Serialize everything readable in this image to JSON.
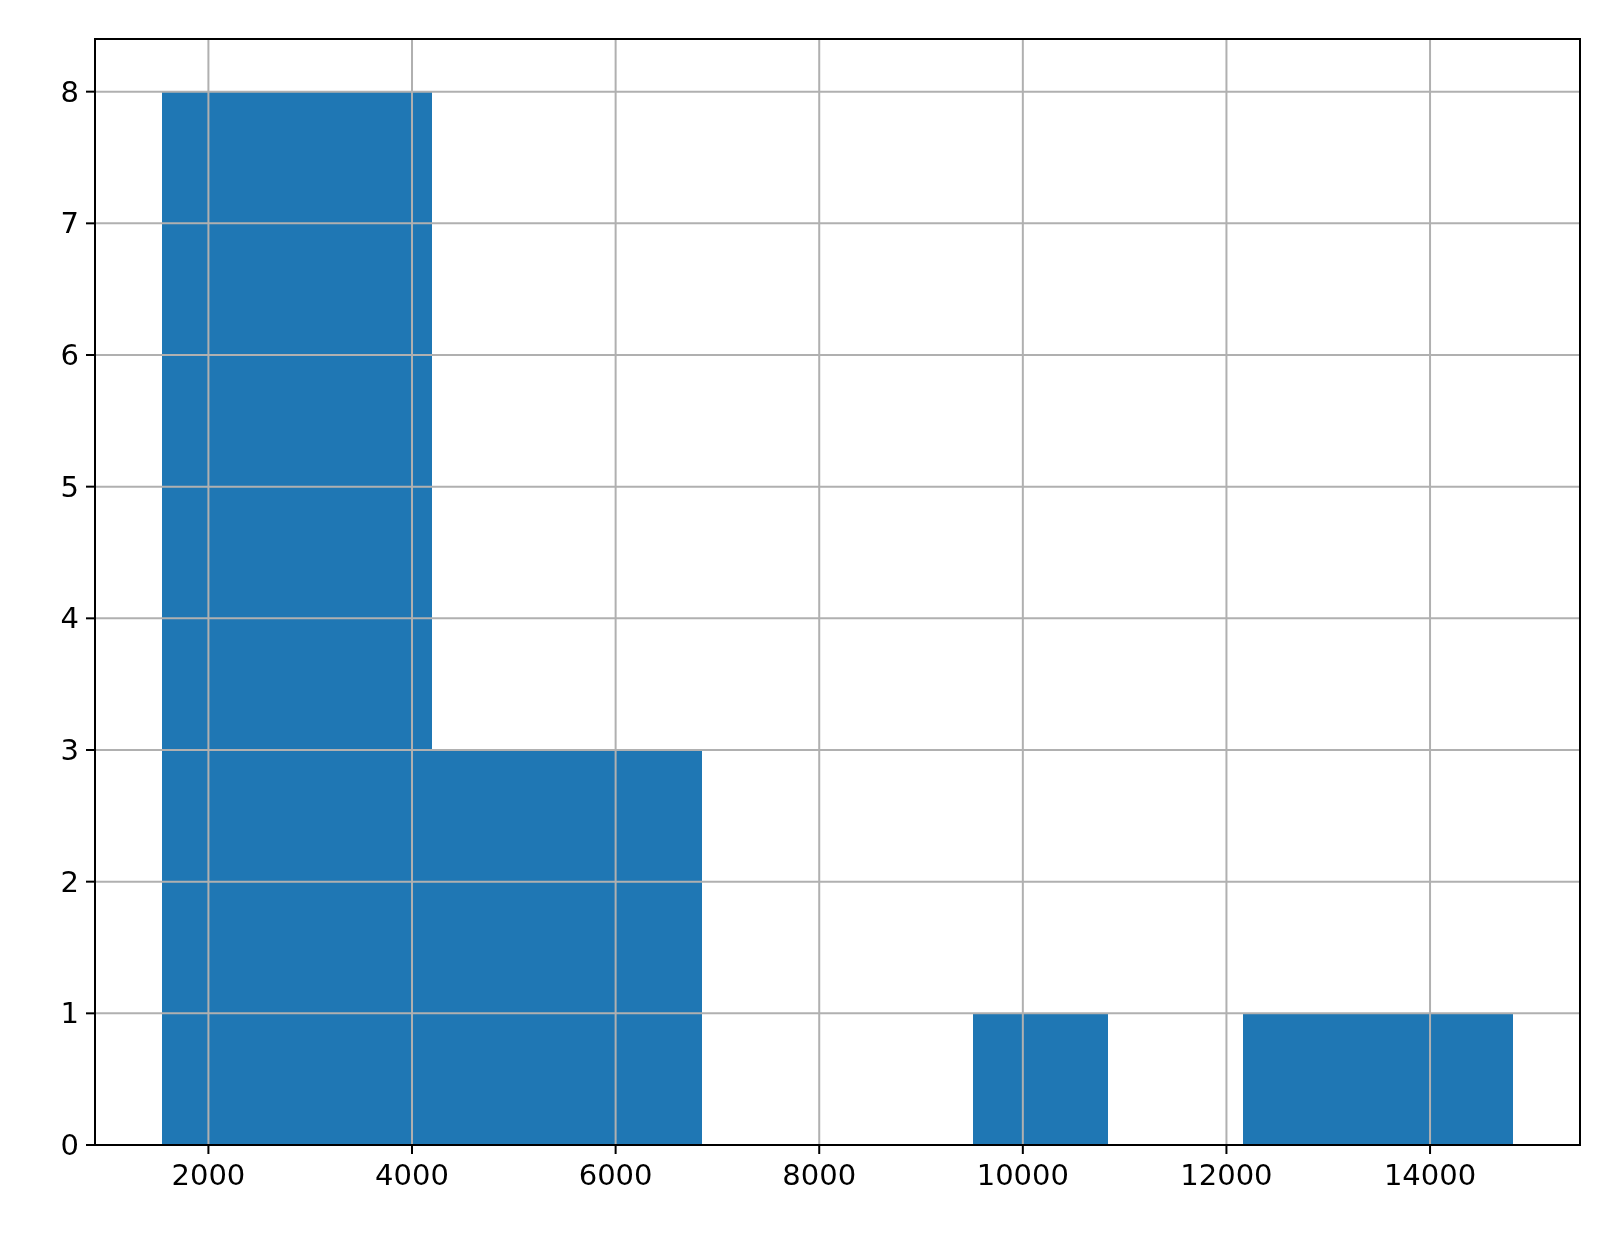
{
  "chart_data": {
    "type": "histogram",
    "bins": [
      1549,
      2875,
      4201,
      5527,
      6853,
      8180,
      9506,
      10832,
      12158,
      13484,
      14810
    ],
    "values": [
      8,
      8,
      3,
      3,
      0,
      0,
      1,
      0,
      1,
      1
    ],
    "color": "#1f77b4",
    "xlim": [
      886,
      15473
    ],
    "xticks": [
      2000,
      4000,
      6000,
      8000,
      10000,
      12000,
      14000
    ],
    "ylim": [
      0,
      8.4
    ],
    "yticks": [
      0,
      1,
      2,
      3,
      4,
      5,
      6,
      7,
      8
    ],
    "grid": true
  }
}
